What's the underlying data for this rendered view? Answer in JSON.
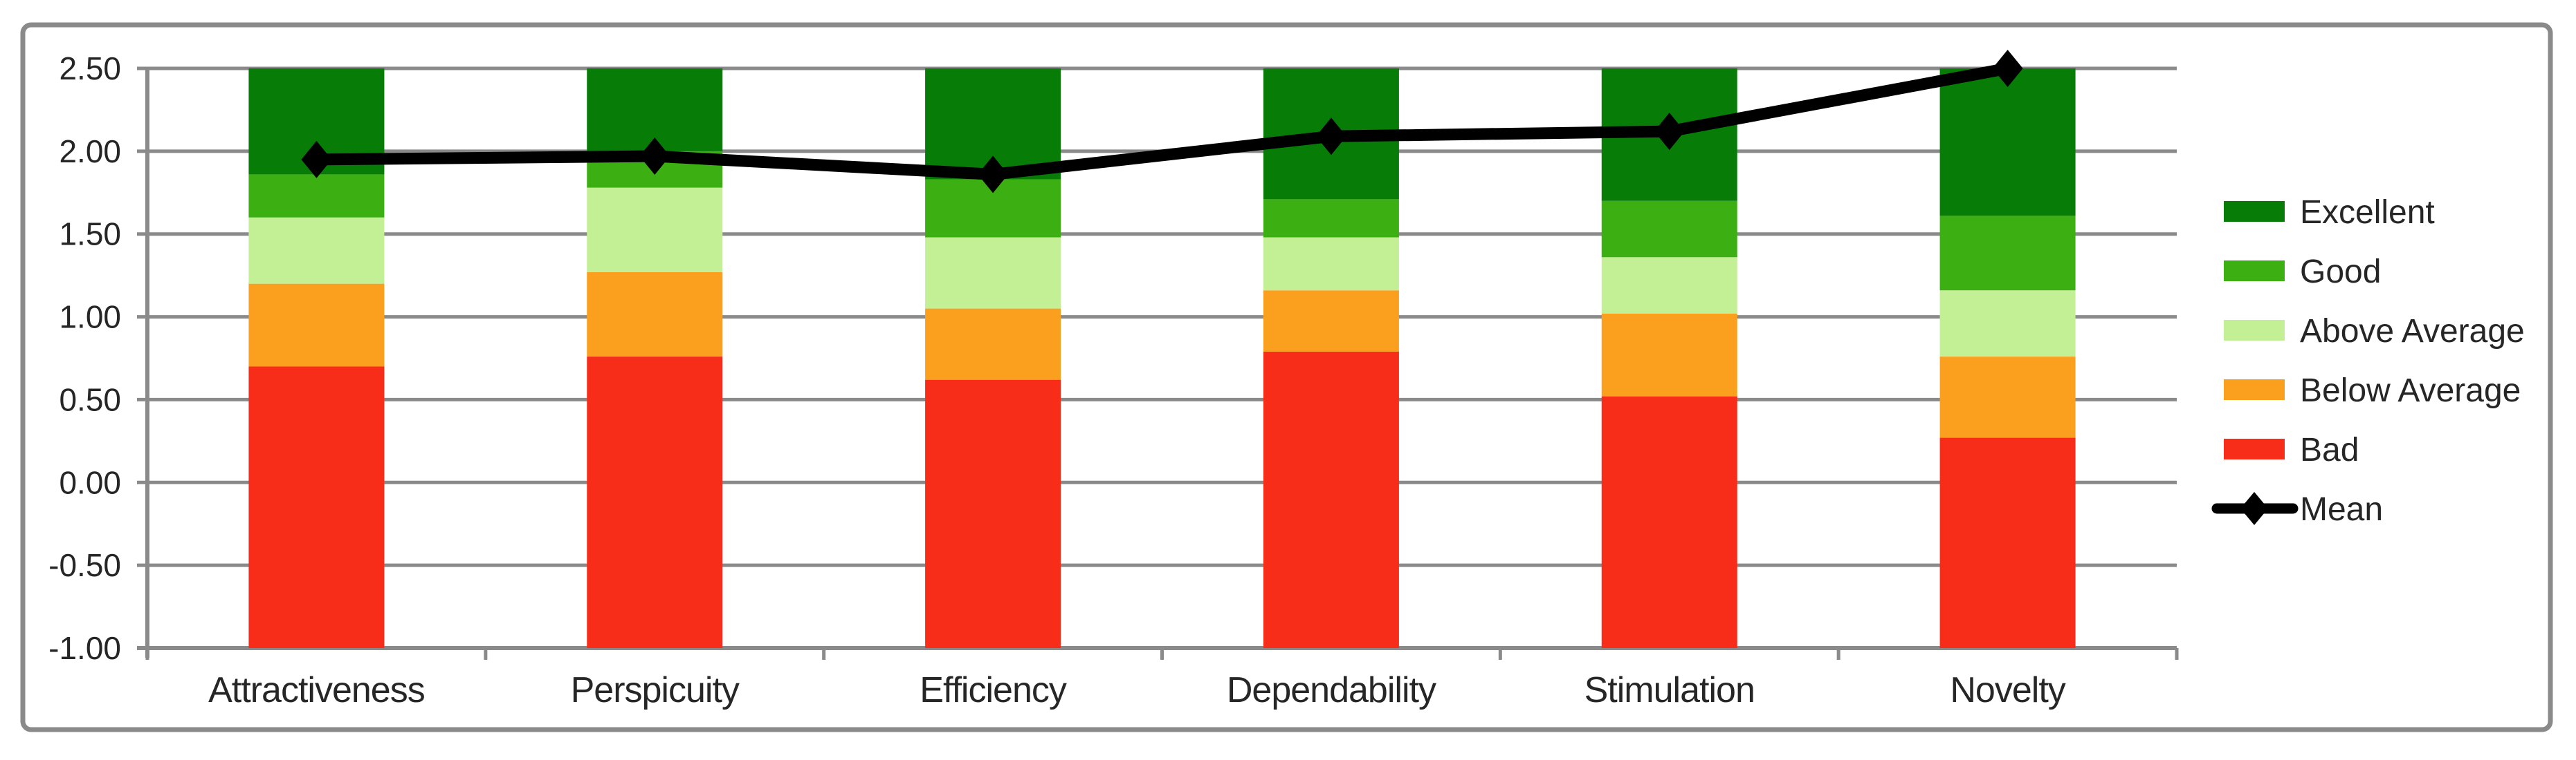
{
  "chart_data": {
    "type": "bar",
    "subtype": "stacked-benchmark-columns-with-mean-line",
    "title": "",
    "categories": [
      "Attractiveness",
      "Perspicuity",
      "Efficiency",
      "Dependability",
      "Stimulation",
      "Novelty"
    ],
    "base_value": -1.0,
    "ylim": [
      -1.0,
      2.5
    ],
    "ytick_labels": [
      "2.50",
      "2.00",
      "1.50",
      "1.00",
      "0.50",
      "0.00",
      "-0.50",
      "-1.00"
    ],
    "ytick_values": [
      2.5,
      2.0,
      1.5,
      1.0,
      0.5,
      0.0,
      -0.5,
      -1.0
    ],
    "grid": true,
    "legend_position": "right",
    "series": [
      {
        "name": "Bad",
        "color": "#F82D19",
        "upper_bounds": [
          0.7,
          0.76,
          0.62,
          0.79,
          0.52,
          0.27
        ]
      },
      {
        "name": "Below Average",
        "color": "#FAA01E",
        "upper_bounds": [
          1.2,
          1.27,
          1.05,
          1.16,
          1.02,
          0.76
        ]
      },
      {
        "name": "Above Average",
        "color": "#C3EF95",
        "upper_bounds": [
          1.6,
          1.78,
          1.48,
          1.48,
          1.36,
          1.16
        ]
      },
      {
        "name": "Good",
        "color": "#3CB013",
        "upper_bounds": [
          1.86,
          2.0,
          1.83,
          1.71,
          1.7,
          1.61
        ]
      },
      {
        "name": "Excellent",
        "color": "#077C07",
        "upper_bounds": [
          2.5,
          2.5,
          2.5,
          2.5,
          2.5,
          2.5
        ]
      }
    ],
    "line_series": {
      "name": "Mean",
      "color": "#000000",
      "marker": "diamond",
      "values": [
        1.95,
        1.97,
        1.86,
        2.09,
        2.12,
        2.5
      ]
    },
    "legend_order": [
      "Excellent",
      "Good",
      "Above Average",
      "Below Average",
      "Bad",
      "Mean"
    ]
  },
  "style_colors": {
    "gridline": "#8A8A8A",
    "axis": "#8A8A8A",
    "chart_border": "#8A8A8A",
    "text": "#262626",
    "background": "#FFFFFF"
  }
}
